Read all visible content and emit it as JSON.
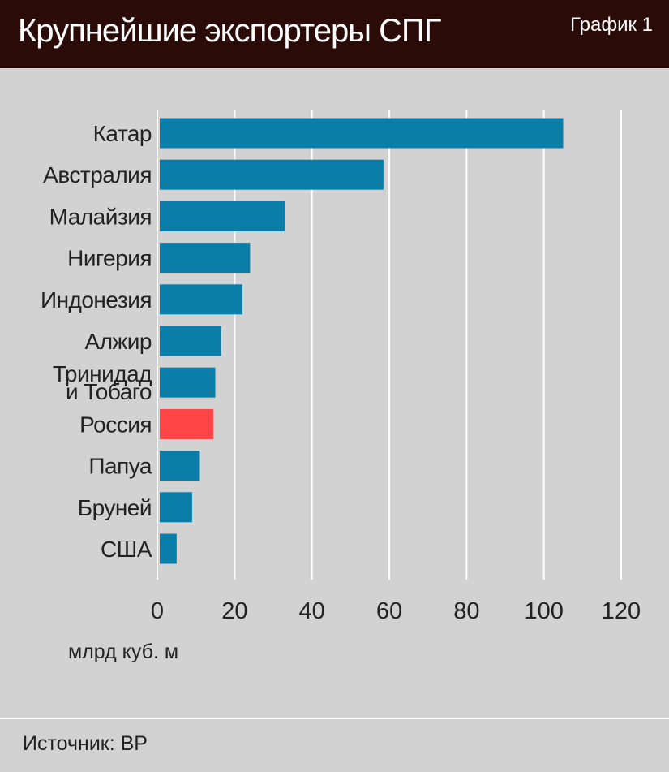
{
  "header": {
    "title": "Крупнейшие экспортеры СПГ",
    "badge": "График 1"
  },
  "source": "Источник: BP",
  "colors": {
    "bar": "#0a7ea9",
    "highlight": "#ff4545",
    "grid": "#ffffff",
    "header_bg": "#2a0b07"
  },
  "chart_data": {
    "type": "bar",
    "orientation": "horizontal",
    "categories": [
      "Катар",
      "Австралия",
      "Малайзия",
      "Нигерия",
      "Индонезия",
      "Алжир",
      "Тринидад и Тобаго",
      "Россия",
      "Папуа",
      "Бруней",
      "США"
    ],
    "category_lines": [
      [
        "Катар"
      ],
      [
        "Австралия"
      ],
      [
        "Малайзия"
      ],
      [
        "Нигерия"
      ],
      [
        "Индонезия"
      ],
      [
        "Алжир"
      ],
      [
        "Тринидад",
        "и Тобаго"
      ],
      [
        "Россия"
      ],
      [
        "Папуа"
      ],
      [
        "Бруней"
      ],
      [
        "США"
      ]
    ],
    "values": [
      105,
      58.5,
      33,
      24,
      22,
      16.5,
      15,
      14.5,
      11,
      9,
      5
    ],
    "highlight": "Россия",
    "xlabel": "млрд куб. м",
    "xlim": [
      0,
      120
    ],
    "xticks": [
      0,
      20,
      40,
      60,
      80,
      100,
      120
    ],
    "grid": true
  }
}
